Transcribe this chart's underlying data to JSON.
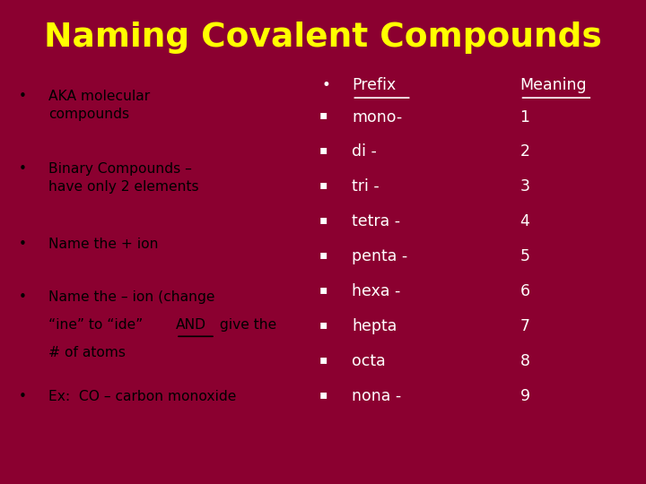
{
  "title": "Naming Covalent Compounds",
  "title_color": "#FFFF00",
  "background_color": "#8B0030",
  "left_text_color": "#000000",
  "right_text_color": "#FFFFFF",
  "left_bullets": [
    "AKA molecular\ncompounds",
    "Binary Compounds –\nhave only 2 elements",
    "Name the + ion",
    "Name the – ion (change\n“ine” to “ide” AND give the\n# of atoms",
    "Ex:  CO – carbon monoxide"
  ],
  "right_header_prefix": "Prefix",
  "right_header_meaning": "Meaning",
  "right_prefixes": [
    "mono-",
    "di -",
    "tri -",
    "tetra -",
    "penta -",
    "hexa -",
    "hepta",
    "octa",
    "nona -"
  ],
  "right_meanings": [
    "1",
    "2",
    "3",
    "4",
    "5",
    "6",
    "7",
    "8",
    "9"
  ],
  "bullet_large": "•",
  "bullet_small": "▪"
}
